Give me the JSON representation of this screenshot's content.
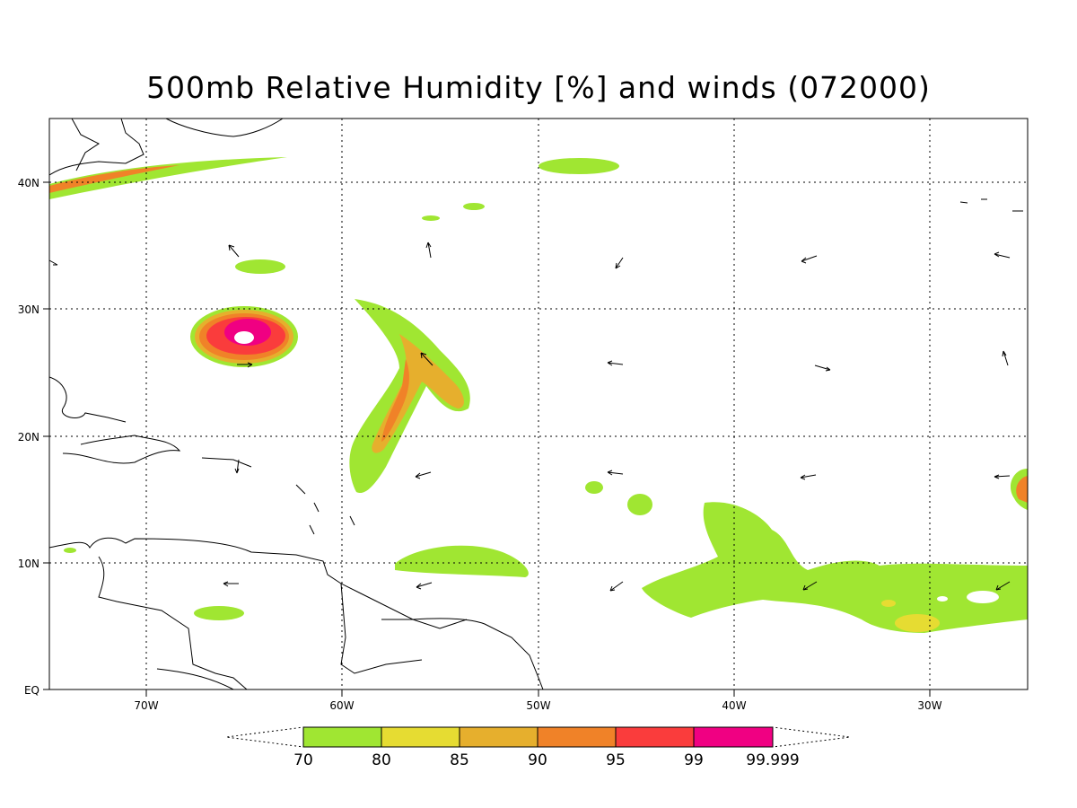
{
  "title": "500mb Relative Humidity [%] and winds (072000)",
  "axes": {
    "lon_labels": [
      "70W",
      "60W",
      "50W",
      "40W",
      "30W"
    ],
    "lat_labels": [
      "40N",
      "30N",
      "20N",
      "10N",
      "EQ"
    ]
  },
  "colorbar": {
    "levels": [
      "70",
      "80",
      "85",
      "90",
      "95",
      "99",
      "99.999"
    ],
    "colors": [
      "#a0e632",
      "#e6dc32",
      "#e6af2d",
      "#f08228",
      "#fa3c3c",
      "#f00082"
    ]
  }
}
